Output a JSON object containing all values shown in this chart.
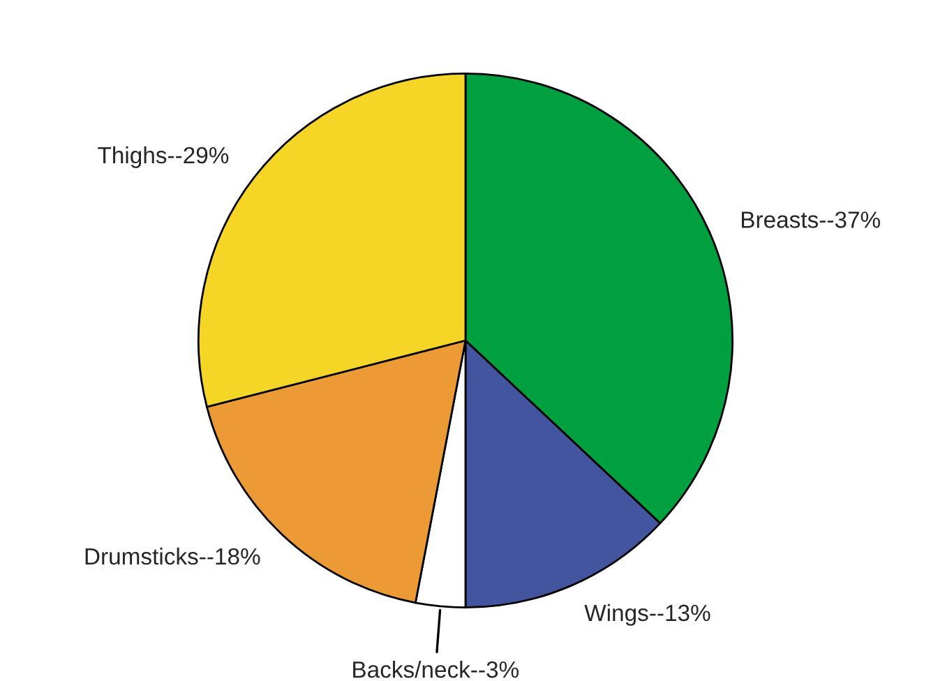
{
  "chart_data": {
    "type": "pie",
    "categories": [
      "Breasts--37%",
      "Wings--13%",
      "Backs/neck--3%",
      "Drumsticks--18%",
      "Thighs--29%"
    ],
    "values": [
      37,
      13,
      3,
      18,
      29
    ],
    "colors": [
      "#00a040",
      "#4455a0",
      "#ffffff",
      "#ec9a35",
      "#f5d626"
    ]
  }
}
